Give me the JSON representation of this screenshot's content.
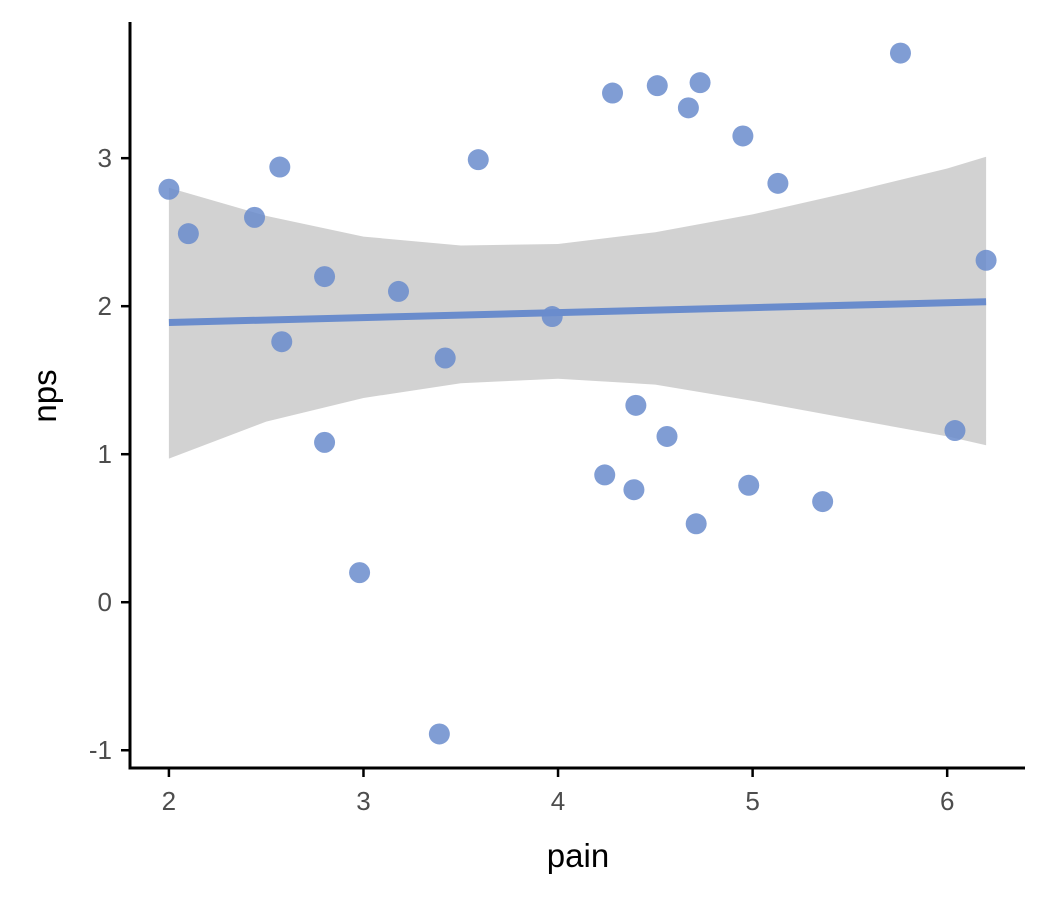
{
  "chart_data": {
    "type": "scatter",
    "title": "",
    "xlabel": "pain",
    "ylabel": "nps",
    "xlim": [
      1.8,
      6.4
    ],
    "ylim": [
      -1.12,
      3.92
    ],
    "x_ticks": [
      2,
      3,
      4,
      5,
      6
    ],
    "y_ticks": [
      -1,
      0,
      1,
      2,
      3
    ],
    "x_tick_labels": [
      "2",
      "3",
      "4",
      "5",
      "6"
    ],
    "y_tick_labels": [
      "-1",
      "0",
      "1",
      "2",
      "3"
    ],
    "grid": false,
    "legend": "none",
    "point_color": "#6a8ccc",
    "line_color": "#6a8ccc",
    "band_color": "#bfbfbf",
    "series": [
      {
        "points": [
          {
            "x": 2.0,
            "y": 2.79
          },
          {
            "x": 2.1,
            "y": 2.49
          },
          {
            "x": 2.44,
            "y": 2.6
          },
          {
            "x": 2.57,
            "y": 2.94
          },
          {
            "x": 2.58,
            "y": 1.76
          },
          {
            "x": 2.8,
            "y": 2.2
          },
          {
            "x": 2.8,
            "y": 1.08
          },
          {
            "x": 2.98,
            "y": 0.2
          },
          {
            "x": 3.18,
            "y": 2.1
          },
          {
            "x": 3.39,
            "y": -0.89
          },
          {
            "x": 3.42,
            "y": 1.65
          },
          {
            "x": 3.59,
            "y": 2.99
          },
          {
            "x": 3.97,
            "y": 1.93
          },
          {
            "x": 4.24,
            "y": 0.86
          },
          {
            "x": 4.28,
            "y": 3.44
          },
          {
            "x": 4.39,
            "y": 0.76
          },
          {
            "x": 4.4,
            "y": 1.33
          },
          {
            "x": 4.51,
            "y": 3.49
          },
          {
            "x": 4.56,
            "y": 1.12
          },
          {
            "x": 4.67,
            "y": 3.34
          },
          {
            "x": 4.71,
            "y": 0.53
          },
          {
            "x": 4.73,
            "y": 3.51
          },
          {
            "x": 4.95,
            "y": 3.15
          },
          {
            "x": 4.98,
            "y": 0.79
          },
          {
            "x": 5.13,
            "y": 2.83
          },
          {
            "x": 5.36,
            "y": 0.68
          },
          {
            "x": 5.76,
            "y": 3.71
          },
          {
            "x": 6.04,
            "y": 1.16
          },
          {
            "x": 6.2,
            "y": 2.31
          }
        ]
      }
    ],
    "regression": {
      "x_start": 2.0,
      "y_start": 1.89,
      "x_end": 6.2,
      "y_end": 2.03
    },
    "confidence_band": [
      {
        "x": 2.0,
        "lower": 0.97,
        "upper": 2.8
      },
      {
        "x": 2.5,
        "lower": 1.22,
        "upper": 2.61
      },
      {
        "x": 3.0,
        "lower": 1.38,
        "upper": 2.47
      },
      {
        "x": 3.5,
        "lower": 1.48,
        "upper": 2.41
      },
      {
        "x": 4.0,
        "lower": 1.51,
        "upper": 2.42
      },
      {
        "x": 4.5,
        "lower": 1.47,
        "upper": 2.5
      },
      {
        "x": 5.0,
        "lower": 1.36,
        "upper": 2.62
      },
      {
        "x": 5.5,
        "lower": 1.24,
        "upper": 2.77
      },
      {
        "x": 6.0,
        "lower": 1.12,
        "upper": 2.93
      },
      {
        "x": 6.2,
        "lower": 1.06,
        "upper": 3.01
      }
    ]
  }
}
